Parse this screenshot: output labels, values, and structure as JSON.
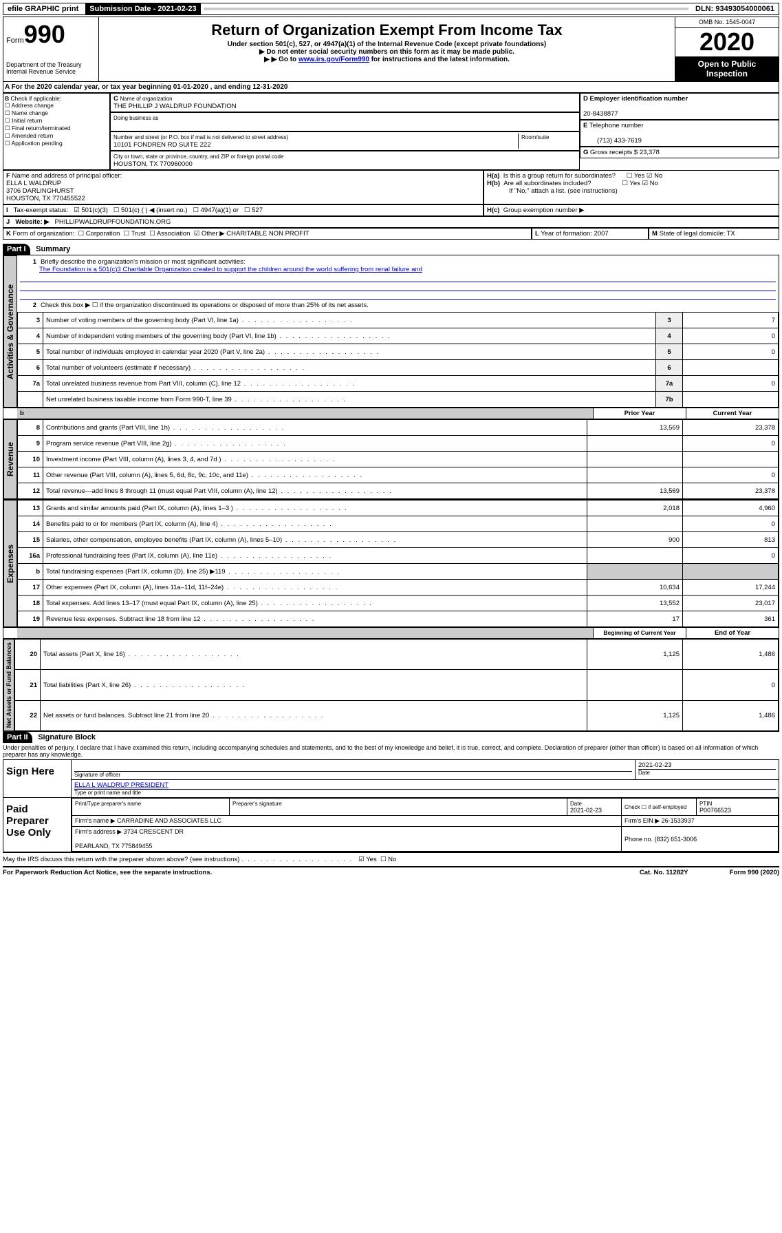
{
  "topbar": {
    "efile": "efile GRAPHIC print",
    "submission_label": "Submission Date - 2021-02-23",
    "dln": "DLN: 93493054000061"
  },
  "header": {
    "form_word": "Form",
    "form_number": "990",
    "title": "Return of Organization Exempt From Income Tax",
    "subtitle": "Under section 501(c), 527, or 4947(a)(1) of the Internal Revenue Code (except private foundations)",
    "note1": "Do not enter social security numbers on this form as it may be made public.",
    "note2_prefix": "Go to ",
    "note2_link": "www.irs.gov/Form990",
    "note2_suffix": " for instructions and the latest information.",
    "dept": "Department of the Treasury\nInternal Revenue Service",
    "omb": "OMB No. 1545-0047",
    "year": "2020",
    "open": "Open to Public Inspection"
  },
  "A": {
    "text": "For the 2020 calendar year, or tax year beginning 01-01-2020    , and ending 12-31-2020"
  },
  "B": {
    "label": "Check if applicable:",
    "items": [
      "Address change",
      "Name change",
      "Initial return",
      "Final return/terminated",
      "Amended return",
      "Application pending"
    ]
  },
  "C": {
    "name_label": "Name of organization",
    "name": "THE PHILLIP J WALDRUP FOUNDATION",
    "dba_label": "Doing business as",
    "addr_label": "Number and street (or P.O. box if mail is not delivered to street address)",
    "room_label": "Room/suite",
    "addr": "10101 FONDREN RD SUITE 222",
    "city_label": "City or town, state or province, country, and ZIP or foreign postal code",
    "city": "HOUSTON, TX  770960000"
  },
  "D": {
    "label": "Employer identification number",
    "value": "20-8438877"
  },
  "E": {
    "label": "Telephone number",
    "value": "(713) 433-7619"
  },
  "G": {
    "label": "Gross receipts $",
    "value": "23,378"
  },
  "F": {
    "label": "Name and address of principal officer:",
    "name": "ELLA L WALDRUP",
    "addr": "3706 DARLINGHURST\nHOUSTON, TX  770455522"
  },
  "H": {
    "a": "Is this a group return for subordinates?",
    "b": "Are all subordinates included?",
    "b_note": "If \"No,\" attach a list. (see instructions)",
    "c": "Group exemption number ▶",
    "yes": "Yes",
    "no": "No"
  },
  "I": {
    "label": "Tax-exempt status:",
    "opts": [
      "501(c)(3)",
      "501(c) (  ) ◀ (insert no.)",
      "4947(a)(1) or",
      "527"
    ]
  },
  "J": {
    "label": "Website: ▶",
    "value": "PHILLIPWALDRUPFOUNDATION.ORG"
  },
  "K": {
    "label": "Form of organization:",
    "opts": [
      "Corporation",
      "Trust",
      "Association",
      "Other ▶"
    ],
    "other": "CHARITABLE NON PROFIT"
  },
  "L": {
    "label": "Year of formation:",
    "value": "2007"
  },
  "M": {
    "label": "State of legal domicile:",
    "value": "TX"
  },
  "part1": {
    "header": "Part I",
    "title": "Summary",
    "q1_label": "Briefly describe the organization's mission or most significant activities:",
    "q1_text": "The Foundation is a 501(c)3 Charitable Organization created to support the children around the world suffering from renal failure and",
    "q2": "Check this box ▶ ☐  if the organization discontinued its operations or disposed of more than 25% of its net assets.",
    "lines_gov": [
      {
        "n": "3",
        "desc": "Number of voting members of the governing body (Part VI, line 1a)",
        "ln": "3",
        "val": "7"
      },
      {
        "n": "4",
        "desc": "Number of independent voting members of the governing body (Part VI, line 1b)",
        "ln": "4",
        "val": "0"
      },
      {
        "n": "5",
        "desc": "Total number of individuals employed in calendar year 2020 (Part V, line 2a)",
        "ln": "5",
        "val": "0"
      },
      {
        "n": "6",
        "desc": "Total number of volunteers (estimate if necessary)",
        "ln": "6",
        "val": ""
      },
      {
        "n": "7a",
        "desc": "Total unrelated business revenue from Part VIII, column (C), line 12",
        "ln": "7a",
        "val": "0"
      },
      {
        "n": "",
        "desc": "Net unrelated business taxable income from Form 990-T, line 39",
        "ln": "7b",
        "val": ""
      }
    ],
    "col_prior": "Prior Year",
    "col_current": "Current Year",
    "lines_rev": [
      {
        "n": "8",
        "desc": "Contributions and grants (Part VIII, line 1h)",
        "p": "13,569",
        "c": "23,378"
      },
      {
        "n": "9",
        "desc": "Program service revenue (Part VIII, line 2g)",
        "p": "",
        "c": "0"
      },
      {
        "n": "10",
        "desc": "Investment income (Part VIII, column (A), lines 3, 4, and 7d )",
        "p": "",
        "c": ""
      },
      {
        "n": "11",
        "desc": "Other revenue (Part VIII, column (A), lines 5, 6d, 8c, 9c, 10c, and 11e)",
        "p": "",
        "c": "0"
      },
      {
        "n": "12",
        "desc": "Total revenue—add lines 8 through 11 (must equal Part VIII, column (A), line 12)",
        "p": "13,569",
        "c": "23,378"
      }
    ],
    "lines_exp": [
      {
        "n": "13",
        "desc": "Grants and similar amounts paid (Part IX, column (A), lines 1–3 )",
        "p": "2,018",
        "c": "4,960"
      },
      {
        "n": "14",
        "desc": "Benefits paid to or for members (Part IX, column (A), line 4)",
        "p": "",
        "c": "0"
      },
      {
        "n": "15",
        "desc": "Salaries, other compensation, employee benefits (Part IX, column (A), lines 5–10)",
        "p": "900",
        "c": "813"
      },
      {
        "n": "16a",
        "desc": "Professional fundraising fees (Part IX, column (A), line 11e)",
        "p": "",
        "c": "0"
      },
      {
        "n": "b",
        "desc": "Total fundraising expenses (Part IX, column (D), line 25) ▶119",
        "p": "GRAY",
        "c": "GRAY"
      },
      {
        "n": "17",
        "desc": "Other expenses (Part IX, column (A), lines 11a–11d, 11f–24e)",
        "p": "10,634",
        "c": "17,244"
      },
      {
        "n": "18",
        "desc": "Total expenses. Add lines 13–17 (must equal Part IX, column (A), line 25)",
        "p": "13,552",
        "c": "23,017"
      },
      {
        "n": "19",
        "desc": "Revenue less expenses. Subtract line 18 from line 12",
        "p": "17",
        "c": "361"
      }
    ],
    "col_begin": "Beginning of Current Year",
    "col_end": "End of Year",
    "lines_net": [
      {
        "n": "20",
        "desc": "Total assets (Part X, line 16)",
        "p": "1,125",
        "c": "1,486"
      },
      {
        "n": "21",
        "desc": "Total liabilities (Part X, line 26)",
        "p": "",
        "c": "0"
      },
      {
        "n": "22",
        "desc": "Net assets or fund balances. Subtract line 21 from line 20",
        "p": "1,125",
        "c": "1,486"
      }
    ]
  },
  "part2": {
    "header": "Part II",
    "title": "Signature Block",
    "jurat": "Under penalties of perjury, I declare that I have examined this return, including accompanying schedules and statements, and to the best of my knowledge and belief, it is true, correct, and complete. Declaration of preparer (other than officer) is based on all information of which preparer has any knowledge.",
    "sign_here": "Sign Here",
    "sig_officer": "Signature of officer",
    "date": "2021-02-23",
    "date_label": "Date",
    "officer_name": "ELLA L WALDRUP  PRESIDENT",
    "type_name": "Type or print name and title",
    "paid": "Paid Preparer Use Only",
    "prep_name_label": "Print/Type preparer's name",
    "prep_sig_label": "Preparer's signature",
    "prep_date": "2021-02-23",
    "check_if": "Check ☐ if self-employed",
    "ptin_label": "PTIN",
    "ptin": "P00766523",
    "firm_name_label": "Firm's name    ▶",
    "firm_name": "CARRADINE AND ASSOCIATES LLC",
    "firm_ein_label": "Firm's EIN ▶",
    "firm_ein": "26-1533937",
    "firm_addr_label": "Firm's address ▶",
    "firm_addr": "3734 CRESCENT DR\n\nPEARLAND, TX  775849455",
    "phone_label": "Phone no.",
    "phone": "(832) 651-3006",
    "discuss": "May the IRS discuss this return with the preparer shown above? (see instructions)"
  },
  "footer": {
    "pra": "For Paperwork Reduction Act Notice, see the separate instructions.",
    "cat": "Cat. No. 11282Y",
    "form": "Form 990 (2020)"
  },
  "vtabs": {
    "gov": "Activities & Governance",
    "rev": "Revenue",
    "exp": "Expenses",
    "net": "Net Assets or Fund Balances"
  }
}
